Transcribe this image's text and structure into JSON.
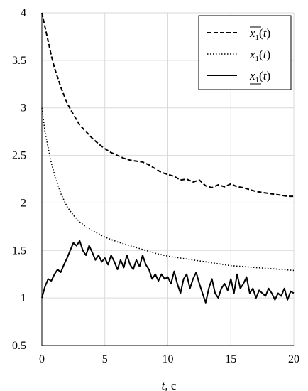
{
  "chart_data": {
    "type": "line",
    "xlabel_var": "t",
    "xlabel_unit": ", c",
    "xlim": [
      0,
      20
    ],
    "ylim": [
      0.5,
      4
    ],
    "xticks": [
      0,
      5,
      10,
      15,
      20
    ],
    "yticks": [
      0.5,
      1,
      1.5,
      2,
      2.5,
      3,
      3.5,
      4
    ],
    "xtick_labels": [
      "0",
      "5",
      "10",
      "15",
      "20"
    ],
    "ytick_labels": [
      "0.5",
      "1",
      "1.5",
      "2",
      "2.5",
      "3",
      "3.5",
      "4"
    ],
    "grid": true,
    "legend_position": "top-right",
    "series": [
      {
        "name": "x1(t) upper",
        "legend": {
          "base": "x",
          "sub": "1",
          "args": "(t)",
          "decor": "overline"
        },
        "style": "dashed",
        "x": [
          0,
          0.25,
          0.5,
          0.75,
          1,
          1.5,
          2,
          2.5,
          3,
          3.5,
          4,
          4.5,
          5,
          5.5,
          6,
          6.5,
          7,
          7.5,
          8,
          8.5,
          9,
          9.5,
          10,
          10.5,
          11,
          11.5,
          12,
          12.5,
          13,
          13.5,
          14,
          14.5,
          15,
          15.5,
          16,
          16.5,
          17,
          17.5,
          18,
          18.5,
          19,
          19.5,
          20
        ],
        "y": [
          4.0,
          3.85,
          3.7,
          3.55,
          3.42,
          3.22,
          3.05,
          2.93,
          2.82,
          2.75,
          2.68,
          2.62,
          2.57,
          2.53,
          2.5,
          2.47,
          2.45,
          2.44,
          2.43,
          2.4,
          2.36,
          2.32,
          2.3,
          2.28,
          2.24,
          2.25,
          2.22,
          2.24,
          2.18,
          2.16,
          2.19,
          2.17,
          2.2,
          2.17,
          2.16,
          2.14,
          2.12,
          2.11,
          2.1,
          2.09,
          2.08,
          2.07,
          2.07
        ]
      },
      {
        "name": "x1(t)",
        "legend": {
          "base": "x",
          "sub": "1",
          "args": "(t)",
          "decor": "none"
        },
        "style": "dotted",
        "x": [
          0,
          0.25,
          0.5,
          0.75,
          1,
          1.5,
          2,
          2.5,
          3,
          3.5,
          4,
          5,
          6,
          7,
          8,
          9,
          10,
          11,
          12,
          13,
          14,
          15,
          16,
          17,
          18,
          19,
          20
        ],
        "y": [
          3.0,
          2.75,
          2.58,
          2.42,
          2.3,
          2.1,
          1.96,
          1.87,
          1.8,
          1.75,
          1.71,
          1.64,
          1.59,
          1.55,
          1.51,
          1.47,
          1.44,
          1.42,
          1.4,
          1.38,
          1.36,
          1.34,
          1.33,
          1.32,
          1.31,
          1.3,
          1.29
        ]
      },
      {
        "name": "x1(t) lower",
        "legend": {
          "base": "x",
          "sub": "1",
          "args": "(t)",
          "decor": "underline"
        },
        "style": "solid",
        "x": [
          0,
          0.25,
          0.5,
          0.75,
          1,
          1.25,
          1.5,
          1.75,
          2,
          2.25,
          2.5,
          2.75,
          3,
          3.25,
          3.5,
          3.75,
          4,
          4.25,
          4.5,
          4.75,
          5,
          5.25,
          5.5,
          5.75,
          6,
          6.25,
          6.5,
          6.75,
          7,
          7.25,
          7.5,
          7.75,
          8,
          8.25,
          8.5,
          8.75,
          9,
          9.25,
          9.5,
          9.75,
          10,
          10.25,
          10.5,
          10.75,
          11,
          11.25,
          11.5,
          11.75,
          12,
          12.25,
          12.5,
          12.75,
          13,
          13.25,
          13.5,
          13.75,
          14,
          14.25,
          14.5,
          14.75,
          15,
          15.25,
          15.5,
          15.75,
          16,
          16.25,
          16.5,
          16.75,
          17,
          17.25,
          17.5,
          17.75,
          18,
          18.25,
          18.5,
          18.75,
          19,
          19.25,
          19.5,
          19.75,
          20
        ],
        "y": [
          1.0,
          1.12,
          1.2,
          1.18,
          1.25,
          1.3,
          1.27,
          1.35,
          1.42,
          1.5,
          1.58,
          1.55,
          1.6,
          1.5,
          1.45,
          1.55,
          1.48,
          1.4,
          1.45,
          1.38,
          1.42,
          1.35,
          1.45,
          1.38,
          1.3,
          1.4,
          1.32,
          1.45,
          1.35,
          1.3,
          1.4,
          1.33,
          1.45,
          1.35,
          1.3,
          1.2,
          1.25,
          1.18,
          1.25,
          1.2,
          1.22,
          1.15,
          1.28,
          1.15,
          1.05,
          1.2,
          1.25,
          1.1,
          1.2,
          1.27,
          1.15,
          1.05,
          0.95,
          1.1,
          1.2,
          1.05,
          1.0,
          1.1,
          1.15,
          1.08,
          1.2,
          1.05,
          1.25,
          1.1,
          1.15,
          1.22,
          1.05,
          1.1,
          1.0,
          1.08,
          1.05,
          1.02,
          1.1,
          1.05,
          0.98,
          1.05,
          1.02,
          1.1,
          0.98,
          1.07,
          1.05
        ]
      }
    ]
  }
}
